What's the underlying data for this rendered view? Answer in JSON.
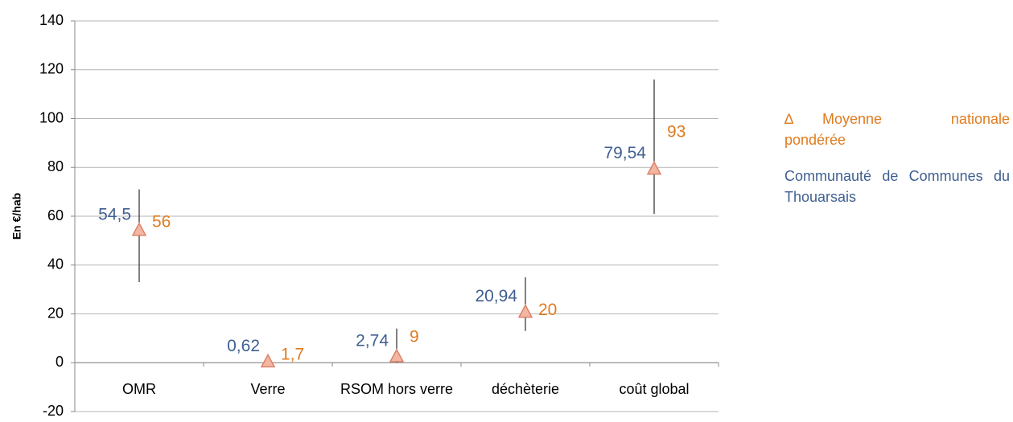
{
  "chart_data": {
    "type": "range-marker",
    "y_label": "En €/hab",
    "categories": [
      "OMR",
      "Verre",
      "RSOM hors verre",
      "déchèterie",
      "coût global"
    ],
    "ylim": [
      -20,
      140
    ],
    "yticks": [
      -20,
      0,
      20,
      40,
      60,
      80,
      100,
      120,
      140
    ],
    "grid": true,
    "legend_symbol": "∆",
    "series": [
      {
        "name": "Moyenne nationale pondérée",
        "color": "#e07b1f",
        "values": [
          56,
          1.7,
          9,
          20,
          93
        ],
        "value_labels": [
          "56",
          "1,7",
          "9",
          "20",
          "93"
        ]
      },
      {
        "name": "Communauté de Communes du Thouarsais",
        "color": "#3f5f91",
        "values": [
          54.5,
          0.62,
          2.74,
          20.94,
          79.54
        ],
        "value_labels": [
          "54,5",
          "0,62",
          "2,74",
          "20,94",
          "79,54"
        ],
        "low": [
          33,
          null,
          0,
          13,
          61
        ],
        "high": [
          71,
          null,
          14,
          35,
          116
        ]
      }
    ],
    "marker_color": "#f4b6a0"
  }
}
